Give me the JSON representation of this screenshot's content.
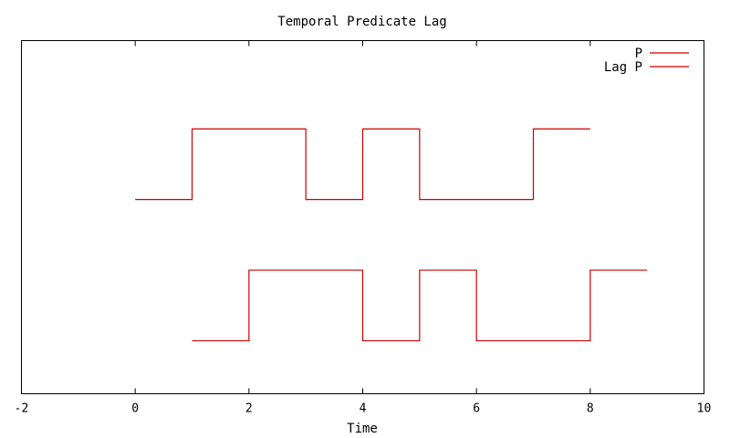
{
  "chart_data": {
    "type": "line",
    "title": "Temporal Predicate Lag",
    "xlabel": "Time",
    "ylabel": "",
    "xlim": [
      -2,
      10
    ],
    "ylim": [
      0,
      1
    ],
    "x_ticks": [
      "-2",
      "0",
      "2",
      "4",
      "6",
      "8",
      "10"
    ],
    "grid": false,
    "legend_position": "top-right",
    "series": [
      {
        "name": "P",
        "color": "#cc0000",
        "step": true,
        "x": [
          0,
          1,
          2,
          3,
          4,
          5,
          6,
          7,
          8
        ],
        "y": [
          0.55,
          0.75,
          0.75,
          0.55,
          0.75,
          0.55,
          0.55,
          0.75,
          0.75
        ]
      },
      {
        "name": "Lag P",
        "color": "#cc0000",
        "step": true,
        "x": [
          1,
          2,
          3,
          4,
          5,
          6,
          7,
          8,
          9
        ],
        "y": [
          0.15,
          0.35,
          0.35,
          0.15,
          0.35,
          0.15,
          0.15,
          0.35,
          0.35
        ]
      }
    ]
  }
}
